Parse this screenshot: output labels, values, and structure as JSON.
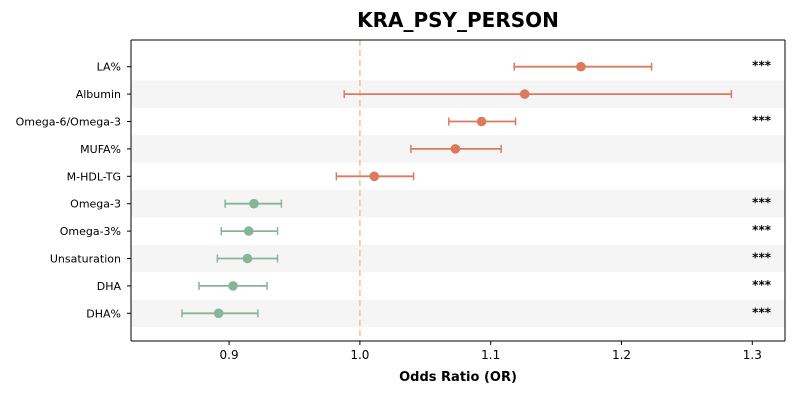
{
  "chart_data": {
    "type": "scatter",
    "subtype": "forest-plot",
    "title": "KRA_PSY_PERSON",
    "xlabel": "Odds Ratio (OR)",
    "ylabel": "",
    "xlim": [
      0.825,
      1.325
    ],
    "xticks": [
      0.9,
      1.0,
      1.1,
      1.2,
      1.3
    ],
    "xtick_labels": [
      "0.9",
      "1.0",
      "1.1",
      "1.2",
      "1.3"
    ],
    "reference_line": 1.0,
    "grid": false,
    "row_banding": true,
    "colors": {
      "positive": "#db7a5f",
      "negative": "#86b59a",
      "reference_line": "#f0c38a",
      "band": "#f5f5f5"
    },
    "rows": [
      {
        "label": "LA%",
        "or": 1.169,
        "ci_low": 1.118,
        "ci_high": 1.223,
        "sig": "***"
      },
      {
        "label": "Albumin",
        "or": 1.126,
        "ci_low": 0.988,
        "ci_high": 1.284,
        "sig": ""
      },
      {
        "label": "Omega-6/Omega-3",
        "or": 1.093,
        "ci_low": 1.068,
        "ci_high": 1.119,
        "sig": "***"
      },
      {
        "label": "MUFA%",
        "or": 1.073,
        "ci_low": 1.039,
        "ci_high": 1.108,
        "sig": ""
      },
      {
        "label": "M-HDL-TG",
        "or": 1.011,
        "ci_low": 0.982,
        "ci_high": 1.041,
        "sig": ""
      },
      {
        "label": "Omega-3",
        "or": 0.919,
        "ci_low": 0.897,
        "ci_high": 0.94,
        "sig": "***"
      },
      {
        "label": "Omega-3%",
        "or": 0.915,
        "ci_low": 0.894,
        "ci_high": 0.937,
        "sig": "***"
      },
      {
        "label": "Unsaturation",
        "or": 0.914,
        "ci_low": 0.891,
        "ci_high": 0.937,
        "sig": "***"
      },
      {
        "label": "DHA",
        "or": 0.903,
        "ci_low": 0.877,
        "ci_high": 0.929,
        "sig": "***"
      },
      {
        "label": "DHA%",
        "or": 0.892,
        "ci_low": 0.864,
        "ci_high": 0.922,
        "sig": "***"
      }
    ]
  }
}
